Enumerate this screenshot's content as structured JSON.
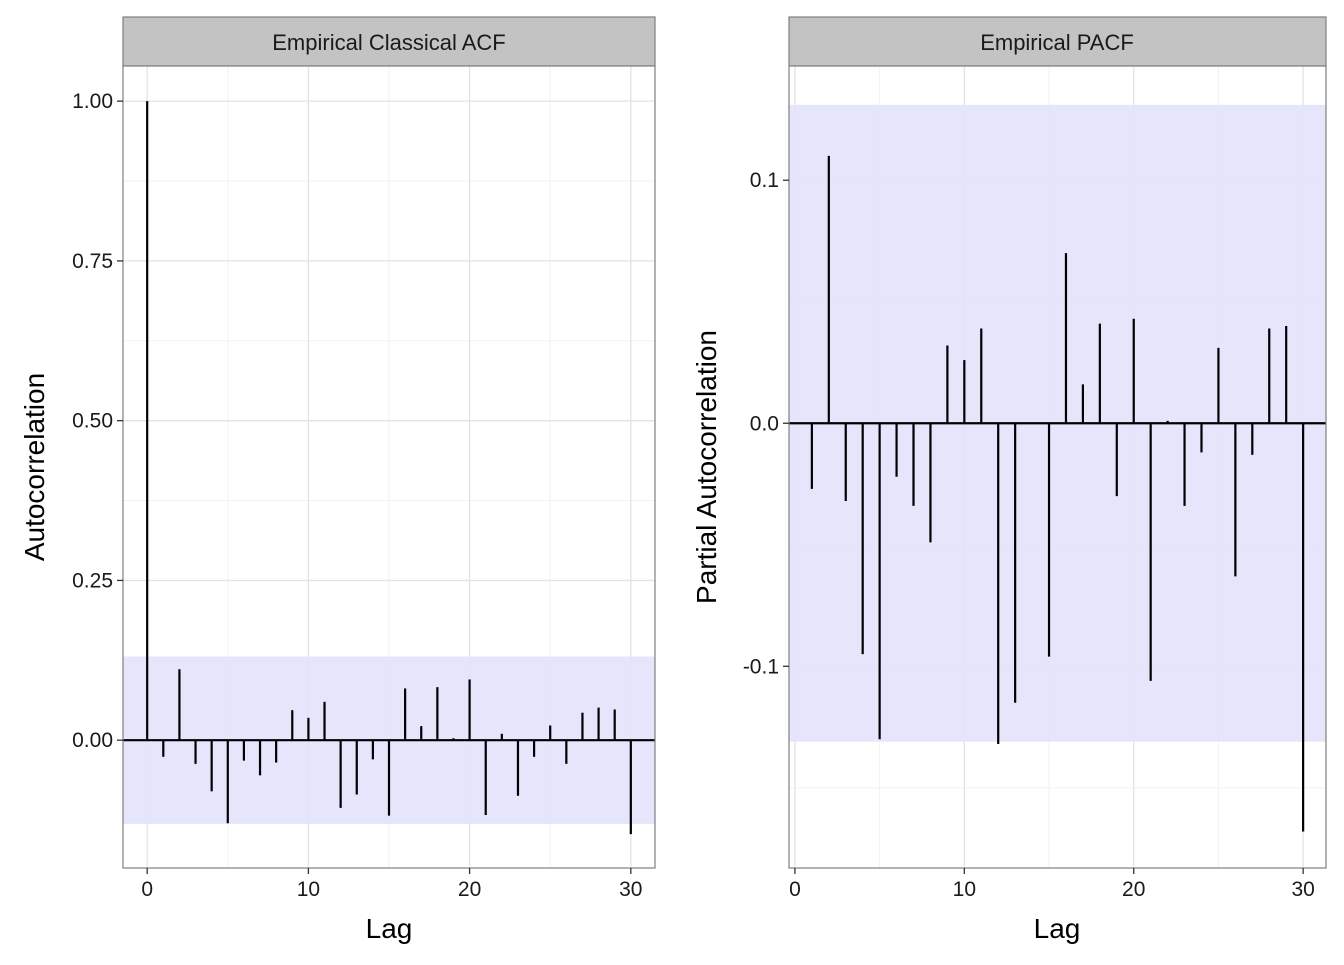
{
  "colors": {
    "panel_background": "#ffffff",
    "panel_border": "#7f7f7f",
    "strip_background": "#c3c3c3",
    "grid_major": "#e3e3e3",
    "grid_minor": "#f2f2f2",
    "confidence_band": "#e2e2fb",
    "bars": "#000000"
  },
  "chart_data": [
    {
      "type": "bar",
      "title": "Empirical Classical ACF",
      "xlabel": "Lag",
      "ylabel": "Autocorrelation",
      "xlim": [
        -1.5,
        31.5
      ],
      "ylim": [
        -0.2,
        1.055
      ],
      "xticks": [
        0,
        10,
        20,
        30
      ],
      "xtick_labels": [
        "0",
        "10",
        "20",
        "30"
      ],
      "yticks": [
        0,
        0.25,
        0.5,
        0.75,
        1
      ],
      "ytick_labels": [
        "0.00",
        "0.25",
        "0.50",
        "0.75",
        "1.00"
      ],
      "confidence_band": [
        -0.131,
        0.131
      ],
      "grid": true,
      "x": [
        0,
        1,
        2,
        3,
        4,
        5,
        6,
        7,
        8,
        9,
        10,
        11,
        12,
        13,
        14,
        15,
        16,
        17,
        18,
        19,
        20,
        21,
        22,
        23,
        24,
        25,
        26,
        27,
        28,
        29,
        30
      ],
      "values": [
        1.0,
        -0.026,
        0.111,
        -0.037,
        -0.08,
        -0.13,
        -0.032,
        -0.055,
        -0.035,
        0.047,
        0.035,
        0.06,
        -0.106,
        -0.085,
        -0.03,
        -0.118,
        0.081,
        0.022,
        0.083,
        0.003,
        0.095,
        -0.117,
        0.01,
        -0.087,
        -0.026,
        0.023,
        -0.037,
        0.043,
        0.051,
        0.048,
        -0.147
      ]
    },
    {
      "type": "bar",
      "title": "Empirical PACF",
      "xlabel": "Lag",
      "ylabel": "Partial Autocorrelation",
      "xlim": [
        -0.35,
        31.35
      ],
      "ylim": [
        -0.183,
        0.147
      ],
      "xticks": [
        0,
        10,
        20,
        30
      ],
      "xtick_labels": [
        "0",
        "10",
        "20",
        "30"
      ],
      "yticks": [
        -0.1,
        0,
        0.1
      ],
      "ytick_labels": [
        "-0.1",
        "0.0",
        "0.1"
      ],
      "confidence_band": [
        -0.131,
        0.131
      ],
      "grid": true,
      "x": [
        1,
        2,
        3,
        4,
        5,
        6,
        7,
        8,
        9,
        10,
        11,
        12,
        13,
        14,
        15,
        16,
        17,
        18,
        19,
        20,
        21,
        22,
        23,
        24,
        25,
        26,
        27,
        28,
        29,
        30
      ],
      "values": [
        -0.027,
        0.11,
        -0.032,
        -0.095,
        -0.13,
        -0.022,
        -0.034,
        -0.049,
        0.032,
        0.026,
        0.039,
        -0.132,
        -0.115,
        0.0,
        -0.096,
        0.07,
        0.016,
        0.041,
        -0.03,
        0.043,
        -0.106,
        0.001,
        -0.034,
        -0.012,
        0.031,
        -0.063,
        -0.013,
        0.039,
        0.04,
        -0.168
      ]
    }
  ]
}
